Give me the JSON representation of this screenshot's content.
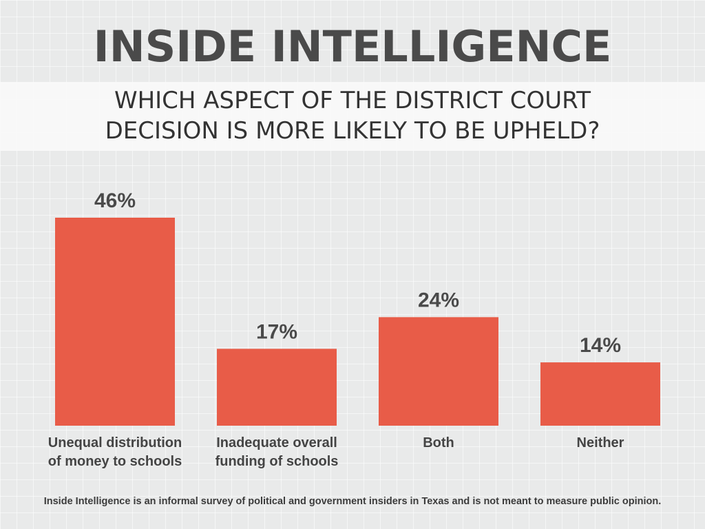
{
  "header": {
    "title": "INSIDE INTELLIGENCE",
    "subtitle": "WHICH ASPECT OF THE DISTRICT COURT\nDECISION  IS MORE LIKELY TO BE UPHELD?"
  },
  "footnote": "Inside Intelligence is an informal survey of political and government insiders in Texas and is not meant to measure public opinion.",
  "colors": {
    "bar": "#e85c48"
  },
  "chart_data": {
    "type": "bar",
    "title": "WHICH ASPECT OF THE DISTRICT COURT DECISION  IS MORE LIKELY TO BE UPHELD?",
    "categories": [
      [
        "Unequal distribution",
        "of money to schools"
      ],
      [
        "Inadequate overall",
        "funding of schools"
      ],
      [
        "Both"
      ],
      [
        "Neither"
      ]
    ],
    "values": [
      46,
      17,
      24,
      14
    ],
    "value_labels": [
      "46%",
      "17%",
      "24%",
      "14%"
    ],
    "unit": "%",
    "xlabel": "",
    "ylabel": "",
    "ylim": [
      0,
      46
    ],
    "grid": false,
    "legend": "none"
  }
}
